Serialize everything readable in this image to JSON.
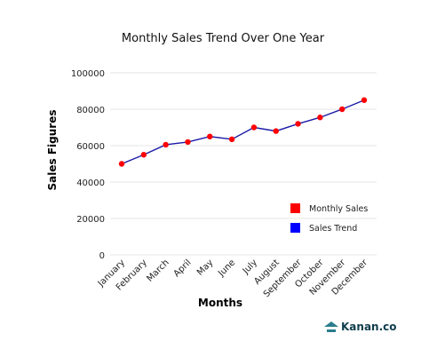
{
  "chart_data": {
    "type": "line",
    "title": "Monthly Sales Trend Over One Year",
    "xlabel": "Months",
    "ylabel": "Sales Figures",
    "categories": [
      "January",
      "February",
      "March",
      "April",
      "May",
      "June",
      "July",
      "August",
      "September",
      "October",
      "November",
      "December"
    ],
    "series": [
      {
        "name": "Monthly Sales",
        "values": [
          50000,
          55000,
          60500,
          62000,
          65000,
          63500,
          70000,
          68000,
          72000,
          75500,
          80000,
          85000
        ]
      }
    ],
    "ylim": [
      0,
      100000
    ],
    "yticks": [
      "0",
      "20000",
      "40000",
      "60000",
      "80000",
      "100000"
    ],
    "grid": true,
    "legend": {
      "position": "bottom-right",
      "entries": [
        {
          "label": "Monthly Sales",
          "color": "#ff0000"
        },
        {
          "label": "Sales Trend",
          "color": "#0000ff"
        }
      ]
    },
    "colors": {
      "marker": "#ff0000",
      "line": "#1a1aa8",
      "grid": "#e6e6e6"
    }
  },
  "branding": {
    "logo_text": "Kanan.co"
  }
}
